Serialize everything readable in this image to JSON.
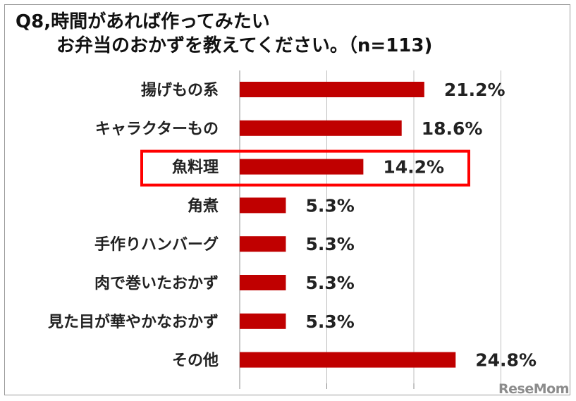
{
  "title_line1": "Q8,時間があれば作ってみたい",
  "title_line2": "お弁当のおかずを教えてください。（n=113)",
  "watermark": "ReseMom",
  "colors": {
    "bar": "#c00000",
    "highlight": "#ff0000",
    "grid": "#bfbfbf"
  },
  "chart_data": {
    "type": "bar",
    "orientation": "horizontal",
    "categories": [
      "揚げもの系",
      "キャラクターもの",
      "魚料理",
      "角煮",
      "手作りハンバーグ",
      "肉で巻いたおかず",
      "見た目が華やかなおかず",
      "その他"
    ],
    "values": [
      21.2,
      18.6,
      14.2,
      5.3,
      5.3,
      5.3,
      5.3,
      24.8
    ],
    "value_labels": [
      "21.2%",
      "18.6%",
      "14.2%",
      "5.3%",
      "5.3%",
      "5.3%",
      "5.3%",
      "24.8%"
    ],
    "xlim": [
      0,
      30
    ],
    "grid": true,
    "highlighted_category": "魚料理"
  }
}
